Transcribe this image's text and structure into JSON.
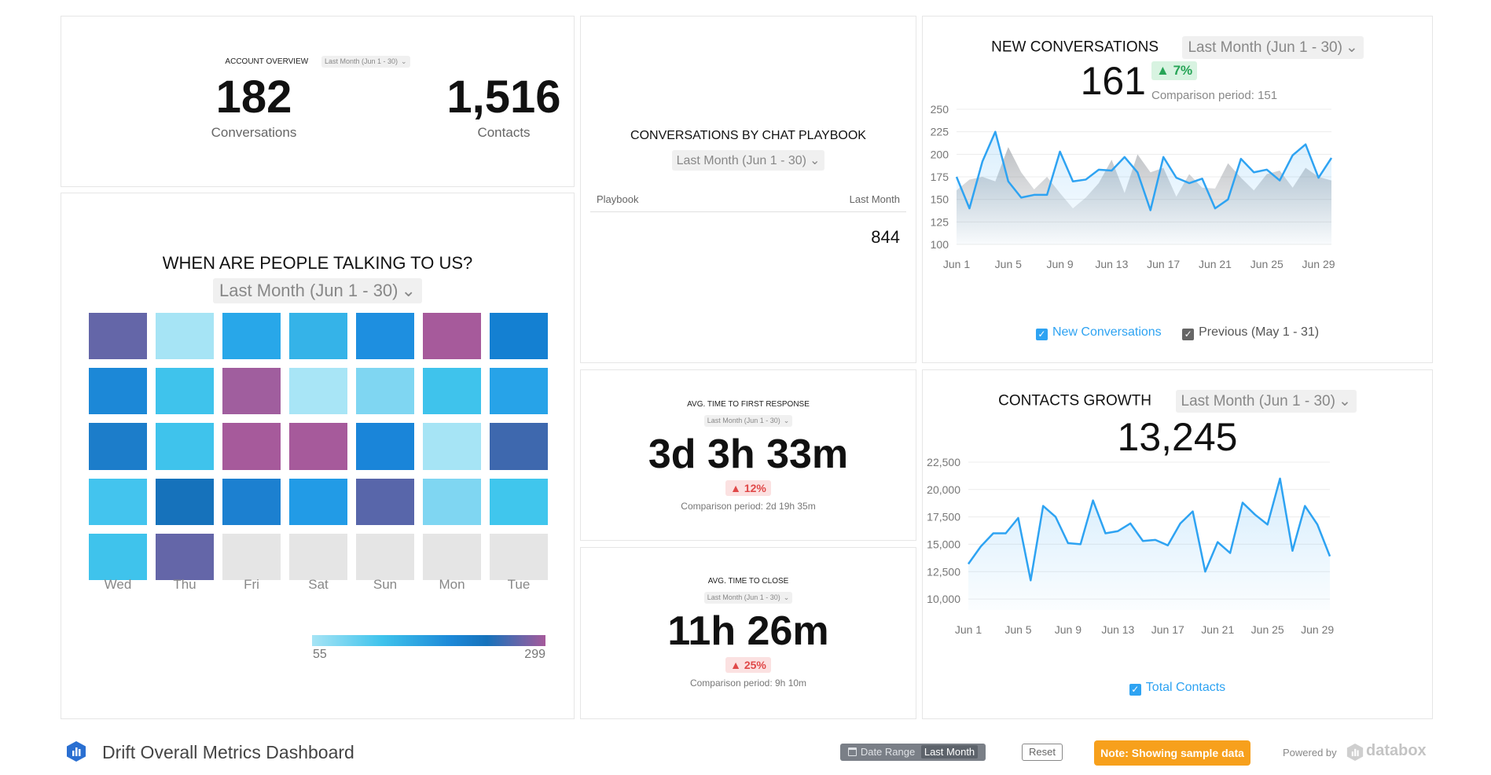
{
  "account_overview": {
    "title": "ACCOUNT OVERVIEW",
    "date_range": "Last Month (Jun 1 - 30)",
    "metrics": [
      {
        "value": "182",
        "label": "Conversations"
      },
      {
        "value": "1,516",
        "label": "Contacts"
      }
    ]
  },
  "heatmap": {
    "title": "WHEN ARE PEOPLE TALKING TO US?",
    "date_range": "Last Month (Jun 1 - 30)",
    "days": [
      "Wed",
      "Thu",
      "Fri",
      "Sat",
      "Sun",
      "Mon",
      "Tue"
    ],
    "rows": [
      [
        "#6466a8",
        "#a6e4f5",
        "#28a7e9",
        "#35b3e8",
        "#1e8fe0",
        "#a65a9b",
        "#1480d2"
      ],
      [
        "#1c88d7",
        "#3fc3ec",
        "#a05e9e",
        "#a8e5f6",
        "#7fd6f2",
        "#3fc3ec",
        "#27a3e8"
      ],
      [
        "#1c7dca",
        "#3fc3ec",
        "#a65a9b",
        "#a65a9b",
        "#1a85d9",
        "#a6e4f5",
        "#3e68ae"
      ],
      [
        "#43c4ee",
        "#1672bb",
        "#1c80d0",
        "#229be6",
        "#5866aa",
        "#7fd6f2",
        "#40c6ed"
      ],
      [
        "#3fc3ec",
        "#6466a8",
        "#e5e5e5",
        "#e5e5e5",
        "#e5e5e5",
        "#e5e5e5",
        "#e5e5e5"
      ]
    ],
    "legend_min": "55",
    "legend_max": "299"
  },
  "playbook": {
    "title": "CONVERSATIONS BY CHAT PLAYBOOK",
    "date_range": "Last Month (Jun 1 - 30)",
    "col_left": "Playbook",
    "col_right": "Last Month",
    "value": "844"
  },
  "first_response": {
    "title": "AVG. TIME TO FIRST RESPONSE",
    "date_range": "Last Month (Jun 1 - 30)",
    "value": "3d 3h 33m",
    "change": "12%",
    "comparison": "Comparison period: 2d 19h 35m"
  },
  "time_to_close": {
    "title": "AVG. TIME TO CLOSE",
    "date_range": "Last Month (Jun 1 - 30)",
    "value": "11h 26m",
    "change": "25%",
    "comparison": "Comparison period: 9h 10m"
  },
  "new_conversations": {
    "title": "NEW CONVERSATIONS",
    "date_range": "Last Month (Jun 1 - 30)",
    "value": "161",
    "change": "7%",
    "comparison": "Comparison period: 151",
    "legend_current": "New Conversations",
    "legend_previous": "Previous (May 1 - 31)"
  },
  "contacts_growth": {
    "title": "CONTACTS GROWTH",
    "date_range": "Last Month (Jun 1 - 30)",
    "value": "13,245",
    "legend": "Total Contacts"
  },
  "footer": {
    "dashboard_title": "Drift Overall Metrics Dashboard",
    "date_range_label": "Date Range",
    "date_range_value": "Last Month",
    "reset_label": "Reset",
    "sample_note": "Note: Showing sample data",
    "powered_by": "Powered by",
    "brand": "databox"
  },
  "colors": {
    "accent_blue": "#2ea3f2",
    "up_green": "#26a456",
    "down_red": "#e04848",
    "note_orange": "#f7a01c"
  },
  "chart_data": [
    {
      "type": "area",
      "name": "new-conversations-chart",
      "x": [
        "Jun 1",
        "Jun 2",
        "Jun 3",
        "Jun 4",
        "Jun 5",
        "Jun 6",
        "Jun 7",
        "Jun 8",
        "Jun 9",
        "Jun 10",
        "Jun 11",
        "Jun 12",
        "Jun 13",
        "Jun 14",
        "Jun 15",
        "Jun 16",
        "Jun 17",
        "Jun 18",
        "Jun 19",
        "Jun 20",
        "Jun 21",
        "Jun 22",
        "Jun 23",
        "Jun 24",
        "Jun 25",
        "Jun 26",
        "Jun 27",
        "Jun 28",
        "Jun 29",
        "Jun 30"
      ],
      "x_ticks": [
        "Jun 1",
        "Jun 5",
        "Jun 9",
        "Jun 13",
        "Jun 17",
        "Jun 21",
        "Jun 25",
        "Jun 29"
      ],
      "series": [
        {
          "name": "New Conversations",
          "values": [
            175,
            140,
            192,
            225,
            170,
            152,
            155,
            155,
            203,
            170,
            172,
            183,
            182,
            197,
            180,
            138,
            197,
            174,
            168,
            173,
            140,
            150,
            195,
            180,
            183,
            171,
            199,
            211,
            174,
            196
          ]
        },
        {
          "name": "Previous (May 1 - 31)",
          "values": [
            160,
            172,
            175,
            170,
            208,
            180,
            161,
            175,
            157,
            140,
            152,
            168,
            194,
            157,
            200,
            180,
            185,
            153,
            178,
            163,
            162,
            190,
            174,
            160,
            178,
            182,
            163,
            185,
            175,
            171
          ]
        }
      ],
      "ylim": [
        100,
        250
      ],
      "y_ticks": [
        100,
        125,
        150,
        175,
        200,
        225,
        250
      ],
      "grid": true
    },
    {
      "type": "area",
      "name": "contacts-growth-chart",
      "x": [
        "Jun 1",
        "Jun 2",
        "Jun 3",
        "Jun 4",
        "Jun 5",
        "Jun 6",
        "Jun 7",
        "Jun 8",
        "Jun 9",
        "Jun 10",
        "Jun 11",
        "Jun 12",
        "Jun 13",
        "Jun 14",
        "Jun 15",
        "Jun 16",
        "Jun 17",
        "Jun 18",
        "Jun 19",
        "Jun 20",
        "Jun 21",
        "Jun 22",
        "Jun 23",
        "Jun 24",
        "Jun 25",
        "Jun 26",
        "Jun 27",
        "Jun 28",
        "Jun 29",
        "Jun 30"
      ],
      "x_ticks": [
        "Jun 1",
        "Jun 5",
        "Jun 9",
        "Jun 13",
        "Jun 17",
        "Jun 21",
        "Jun 25",
        "Jun 29"
      ],
      "series": [
        {
          "name": "Total Contacts",
          "values": [
            13200,
            14800,
            16000,
            16000,
            17400,
            11700,
            18500,
            17500,
            15100,
            15000,
            19000,
            16000,
            16200,
            16900,
            15300,
            15400,
            14900,
            16900,
            18000,
            12500,
            15200,
            14200,
            18800,
            17700,
            16800,
            21000,
            14400,
            18500,
            16800,
            13900
          ]
        }
      ],
      "ylim": [
        9000,
        23000
      ],
      "y_ticks": [
        10000,
        12500,
        15000,
        17500,
        20000,
        22500
      ],
      "y_tick_labels": [
        "10,000",
        "12,500",
        "15,000",
        "17,500",
        "20,000",
        "22,500"
      ],
      "grid": true
    }
  ]
}
